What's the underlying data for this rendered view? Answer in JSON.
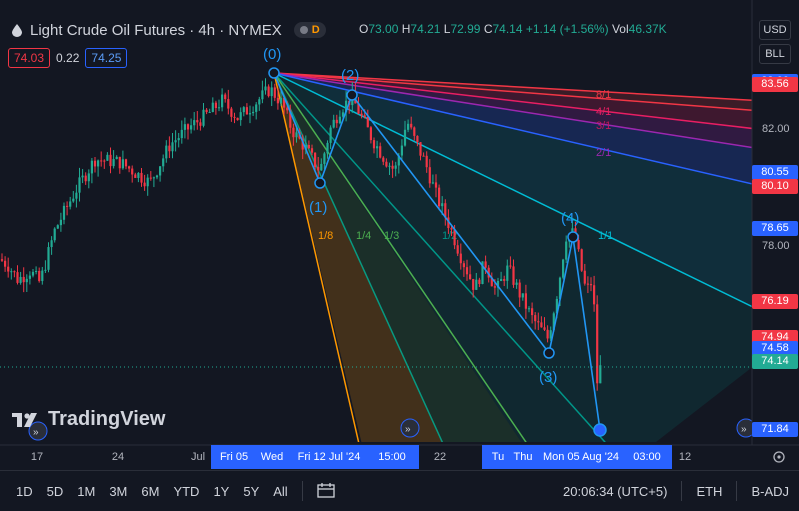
{
  "header": {
    "title": "Light Crude Oil Futures · 4h · NYMEX",
    "badge_delay": "D",
    "ohlc": {
      "o_label": "O",
      "o": "73.00",
      "h_label": "H",
      "h": "74.21",
      "l_label": "L",
      "l": "72.99",
      "c_label": "C",
      "c": "74.14",
      "change": "+1.14 (+1.56%)",
      "vol_label": "Vol",
      "vol": "46.37K"
    },
    "currency_button": "USD",
    "bll_button": "BLL"
  },
  "bidask": {
    "bid": "74.03",
    "spread": "0.22",
    "ask": "74.25"
  },
  "logo_text": "TradingView",
  "colors": {
    "up": "#22ab94",
    "down": "#f23645",
    "accent": "#2962ff",
    "bg": "#131722"
  },
  "chart_data": {
    "type": "candlestick",
    "symbol": "Light Crude Oil Futures",
    "timeframe": "4h",
    "y_ticks": [
      "83.66",
      "83.56",
      "82.00",
      "80.55",
      "80.10",
      "78.65",
      "78.00",
      "76.19",
      "74.94",
      "74.58",
      "74.14",
      "71.84"
    ],
    "price_tags": [
      {
        "label": "83.66",
        "price": 83.66,
        "color": "#2962ff"
      },
      {
        "label": "83.56",
        "price": 83.56,
        "color": "#f23645"
      },
      {
        "label": "80.55",
        "price": 80.55,
        "color": "#2962ff"
      },
      {
        "label": "80.10",
        "price": 80.1,
        "color": "#f23645"
      },
      {
        "label": "78.65",
        "price": 78.65,
        "color": "#2962ff"
      },
      {
        "label": "76.19",
        "price": 76.19,
        "color": "#f23645"
      },
      {
        "label": "74.94",
        "price": 74.94,
        "color": "#f23645"
      },
      {
        "label": "74.58",
        "price": 74.58,
        "color": "#2962ff"
      },
      {
        "label": "74.14",
        "price": 74.14,
        "color": "#22ab94"
      },
      {
        "label": "71.84",
        "price": 71.84,
        "color": "#2962ff"
      }
    ],
    "plain_price_labels": [
      {
        "label": "82.00",
        "price": 82.0
      },
      {
        "label": "78.00",
        "price": 78.0
      }
    ],
    "x_ticks": [
      "17",
      "24",
      "Jul",
      "22",
      "12"
    ],
    "x_highlight_labels": [
      "Fri 05",
      "Wed",
      "Fri 12 Jul '24",
      "15:00",
      "Tu",
      "Thu",
      "Mon 05 Aug '24",
      "03:00"
    ],
    "wave_labels": [
      "(0)",
      "(1)",
      "(2)",
      "(3)",
      "(4)"
    ],
    "fan_labels": [
      "1/8",
      "1/4",
      "1/3",
      "1/2",
      "1/1",
      "2/1",
      "3/1",
      "4/1",
      "8/1"
    ],
    "price_path": [
      [
        0,
        77.6
      ],
      [
        8,
        77.4
      ],
      [
        18,
        76.9
      ],
      [
        30,
        77.2
      ],
      [
        40,
        76.8
      ],
      [
        55,
        78.6
      ],
      [
        75,
        79.9
      ],
      [
        95,
        81.0
      ],
      [
        120,
        80.9
      ],
      [
        150,
        80.2
      ],
      [
        170,
        81.5
      ],
      [
        190,
        82.1
      ],
      [
        210,
        82.6
      ],
      [
        222,
        83.0
      ],
      [
        238,
        82.4
      ],
      [
        255,
        82.9
      ],
      [
        270,
        83.4
      ],
      [
        282,
        82.9
      ],
      [
        292,
        82.0
      ],
      [
        305,
        81.4
      ],
      [
        320,
        80.6
      ],
      [
        330,
        82.0
      ],
      [
        340,
        82.7
      ],
      [
        352,
        83.1
      ],
      [
        362,
        82.4
      ],
      [
        372,
        81.7
      ],
      [
        385,
        81.0
      ],
      [
        395,
        80.6
      ],
      [
        402,
        81.6
      ],
      [
        407,
        82.3
      ],
      [
        414,
        81.7
      ],
      [
        425,
        80.9
      ],
      [
        437,
        79.7
      ],
      [
        450,
        78.7
      ],
      [
        462,
        77.6
      ],
      [
        475,
        76.6
      ],
      [
        485,
        77.5
      ],
      [
        496,
        76.5
      ],
      [
        508,
        77.3
      ],
      [
        520,
        76.4
      ],
      [
        532,
        75.6
      ],
      [
        548,
        74.9
      ],
      [
        558,
        76.6
      ],
      [
        566,
        78.4
      ],
      [
        574,
        78.5
      ],
      [
        580,
        77.5
      ],
      [
        586,
        76.5
      ],
      [
        593,
        76.9
      ],
      [
        597,
        73.4
      ],
      [
        602,
        74.14
      ]
    ]
  },
  "timeframes": [
    "1D",
    "5D",
    "1M",
    "3M",
    "6M",
    "YTD",
    "1Y",
    "5Y",
    "All"
  ],
  "footer": {
    "time": "20:06:34 (UTC+5)",
    "session": "ETH",
    "adjust": "B-ADJ"
  }
}
